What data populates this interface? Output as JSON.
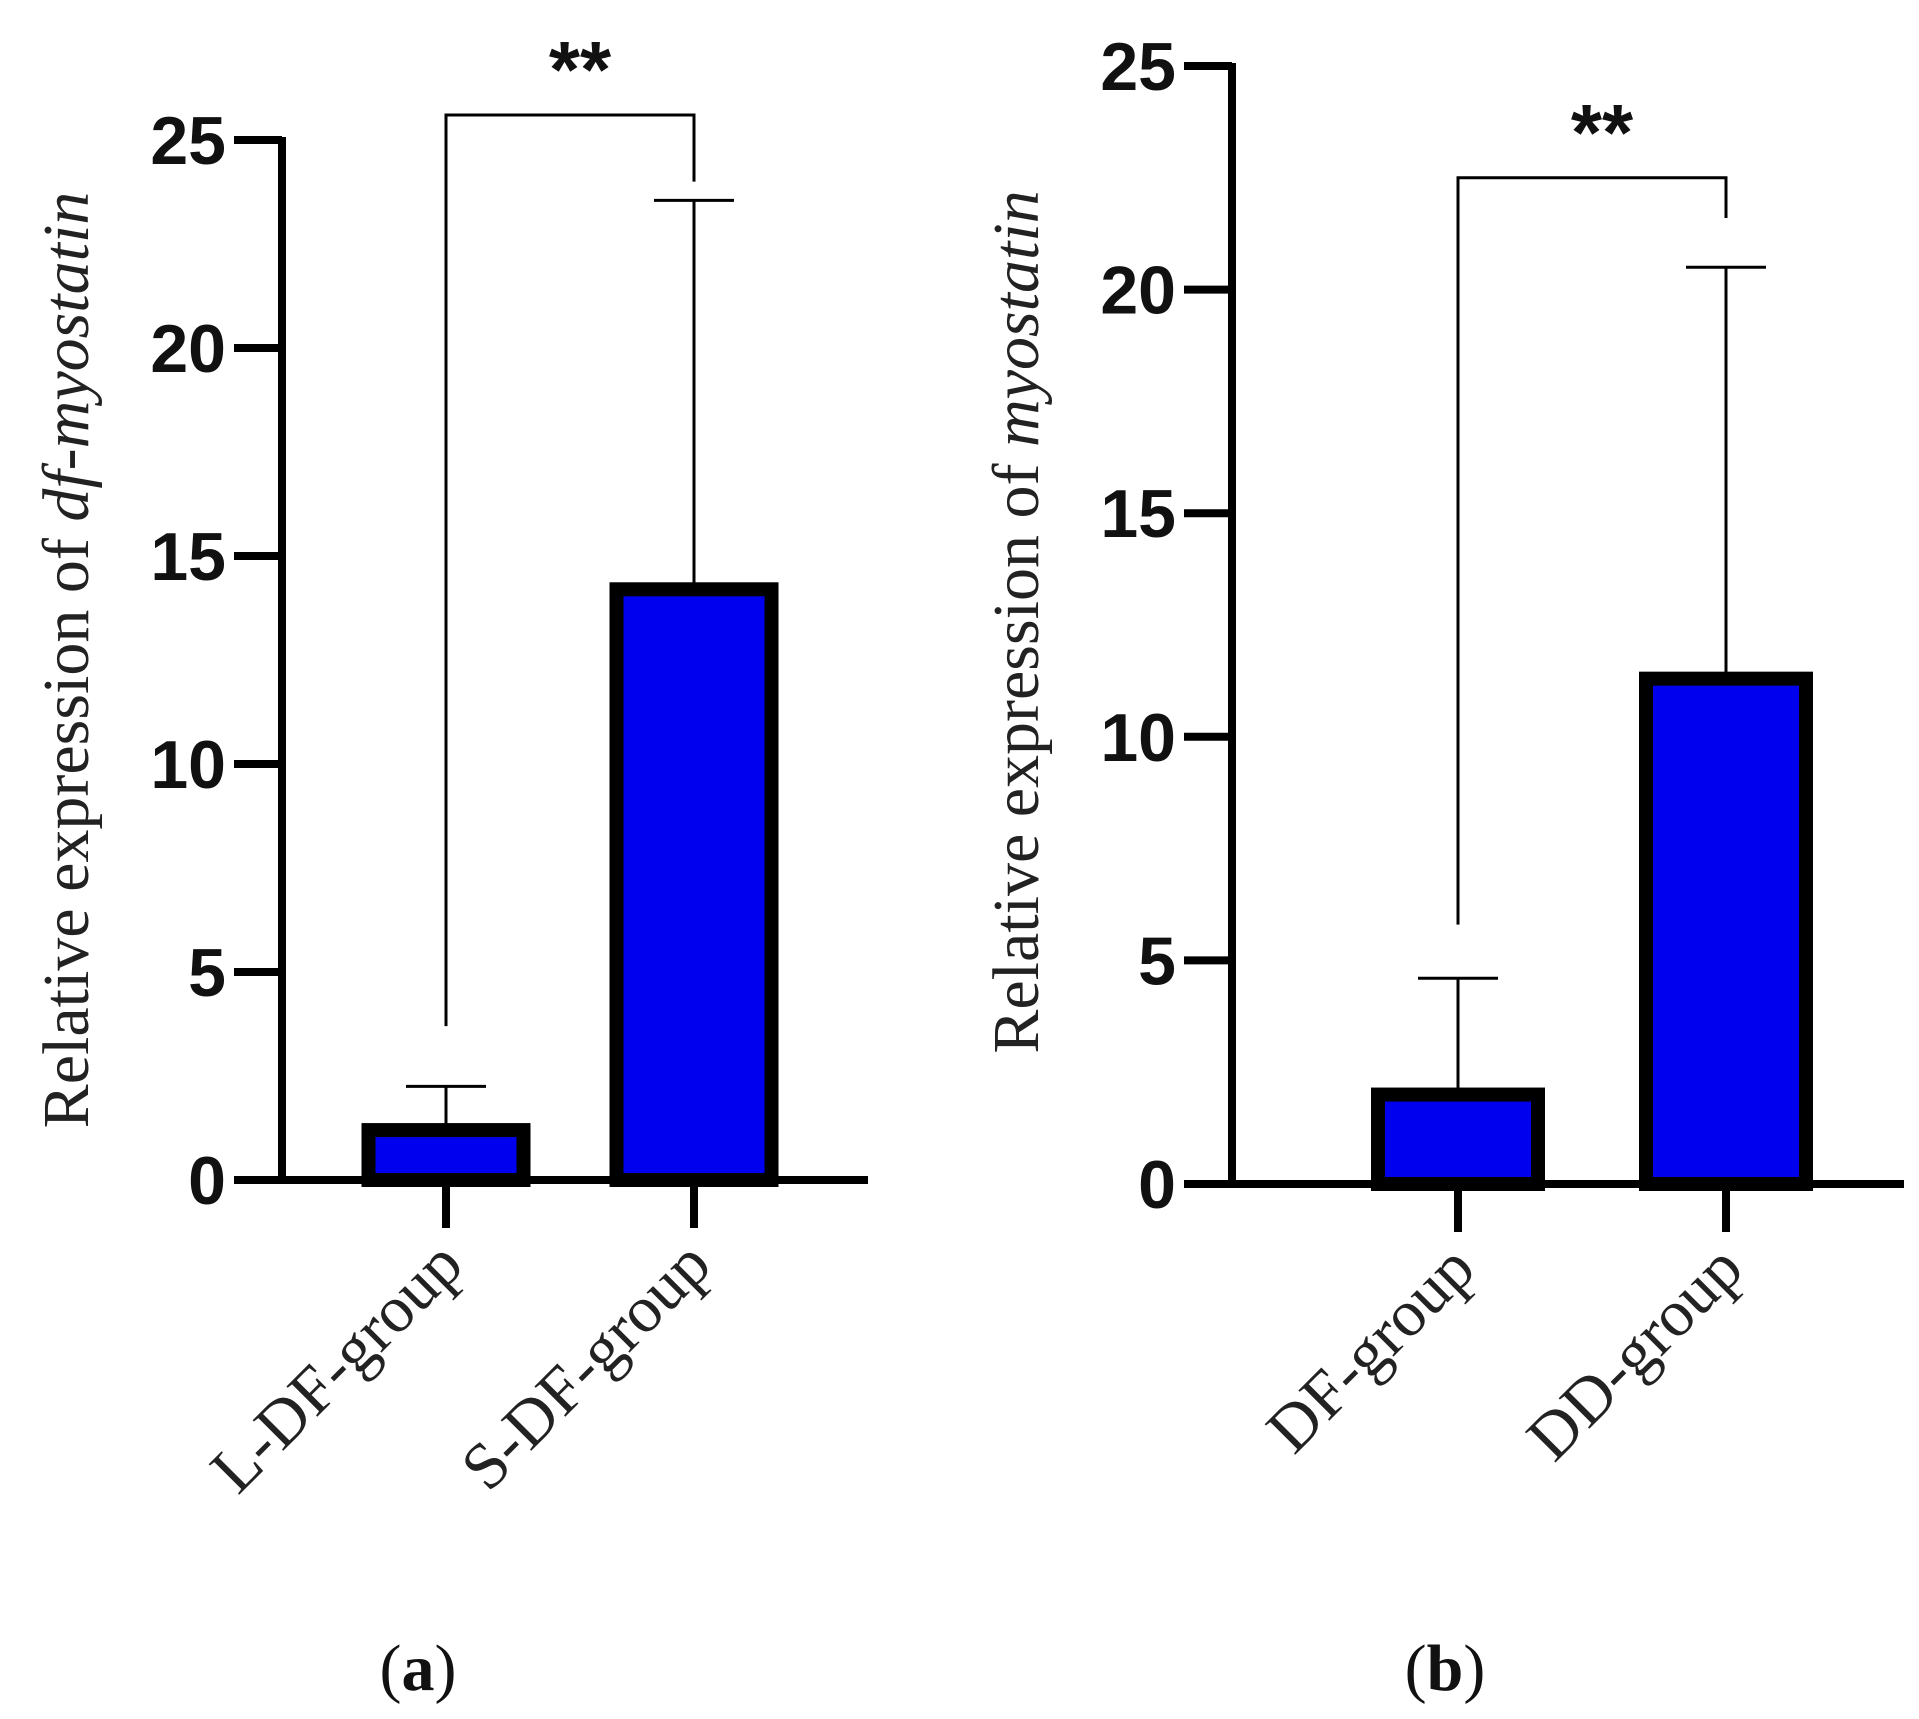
{
  "colors": {
    "bar_fill": "#0000ee",
    "bar_stroke": "#000000",
    "axis": "#000000"
  },
  "chart_data": [
    {
      "type": "bar",
      "panel_label": {
        "open": "(",
        "letter": "a",
        "close": ")"
      },
      "categories": [
        "L-DF-group",
        "S-DF-group"
      ],
      "values": [
        1.2,
        14.2
      ],
      "error_upper": [
        2.25,
        23.55
      ],
      "ylabel": {
        "prefix": "Relative expression of ",
        "gene": "df-myostatin"
      },
      "ylim": [
        0,
        25
      ],
      "yticks": [
        0,
        5,
        10,
        15,
        20,
        25
      ],
      "significance": {
        "label": "**",
        "between": [
          0,
          1
        ],
        "left_y": 3.7,
        "right_y": 24.0,
        "top_y": 25.6
      }
    },
    {
      "type": "bar",
      "panel_label": {
        "open": "(",
        "letter": "b",
        "close": ")"
      },
      "categories": [
        "DF-group",
        "DD-group"
      ],
      "values": [
        2.0,
        11.3
      ],
      "error_upper": [
        4.6,
        20.5
      ],
      "ylabel": {
        "prefix": "Relative expression of ",
        "gene": "myostatin"
      },
      "ylim": [
        0,
        25
      ],
      "yticks": [
        0,
        5,
        10,
        15,
        20,
        25
      ],
      "significance": {
        "label": "**",
        "between": [
          0,
          1
        ],
        "left_y": 5.8,
        "right_y": 21.6,
        "top_y": 22.5
      }
    }
  ]
}
